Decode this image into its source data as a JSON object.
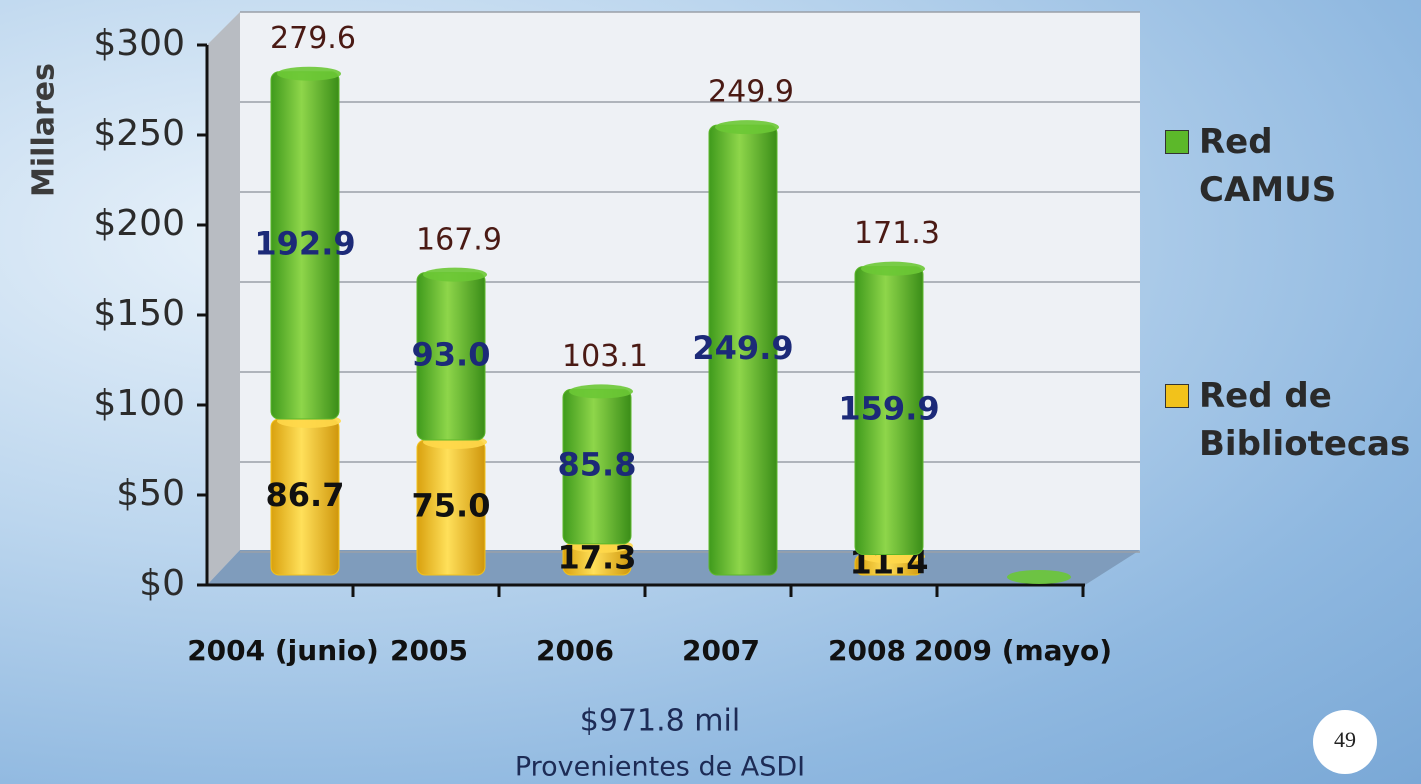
{
  "chart_data": {
    "type": "stacked-bar-3d",
    "y_label": "Millares",
    "categories": [
      "2004 (junio)",
      "2005",
      "2006",
      "2007",
      "2008",
      "2009 (mayo)"
    ],
    "series": [
      {
        "name": "Red de Bibliotecas",
        "color": "#f2c21b",
        "values": [
          86.7,
          75.0,
          17.3,
          0,
          11.4,
          0
        ],
        "value_labels": [
          "86.7",
          "75.0",
          "17.3",
          null,
          "11.4",
          null
        ]
      },
      {
        "name": "Red CAMUS",
        "color": "#5cb82a",
        "values": [
          192.9,
          93.0,
          85.8,
          249.9,
          159.9,
          0
        ],
        "value_labels": [
          "192.9",
          "93.0",
          "85.8",
          "249.9",
          "159.9",
          null
        ]
      }
    ],
    "totals": [
      279.6,
      167.9,
      103.1,
      249.9,
      171.3,
      null
    ],
    "ylim": [
      0,
      300
    ],
    "yticks": [
      {
        "value": 0,
        "label": "$0"
      },
      {
        "value": 50,
        "label": "$50"
      },
      {
        "value": 100,
        "label": "$100"
      },
      {
        "value": 150,
        "label": "$150"
      },
      {
        "value": 200,
        "label": "$200"
      },
      {
        "value": 250,
        "label": "$250"
      },
      {
        "value": 300,
        "label": "$300"
      }
    ],
    "grid": true,
    "legend": "right",
    "annotations": [
      "$971.8 mil",
      "Provenientes de ASDI"
    ],
    "page_number": "49"
  }
}
